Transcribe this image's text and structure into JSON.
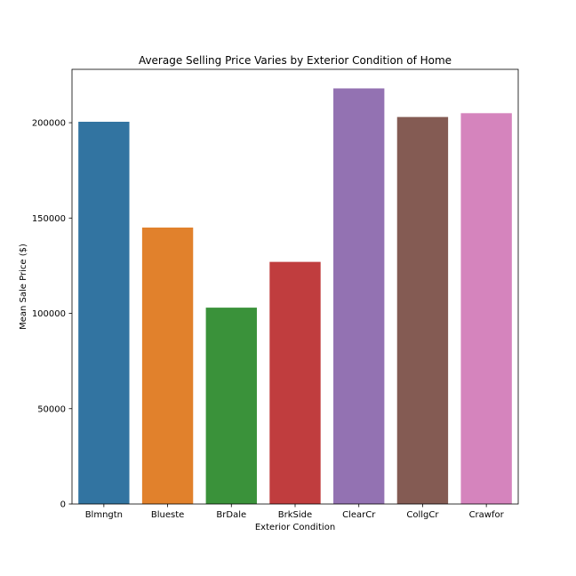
{
  "chart_data": {
    "type": "bar",
    "title": "Average Selling Price Varies by Exterior Condition of Home",
    "xlabel": "Exterior Condition",
    "ylabel": "Mean Sale Price ($)",
    "categories": [
      "Blmngtn",
      "Blueste",
      "BrDale",
      "BrkSide",
      "ClearCr",
      "CollgCr",
      "Crawfor"
    ],
    "values": [
      200500,
      145000,
      103000,
      127000,
      218000,
      203000,
      205000
    ],
    "colors": [
      "#3274a1",
      "#e1812c",
      "#3a923a",
      "#c03d3e",
      "#9372b2",
      "#845b53",
      "#d584bd"
    ],
    "ylim": [
      0,
      228000
    ],
    "yticks": [
      0,
      50000,
      100000,
      150000,
      200000
    ],
    "grid": false,
    "legend": "none"
  }
}
